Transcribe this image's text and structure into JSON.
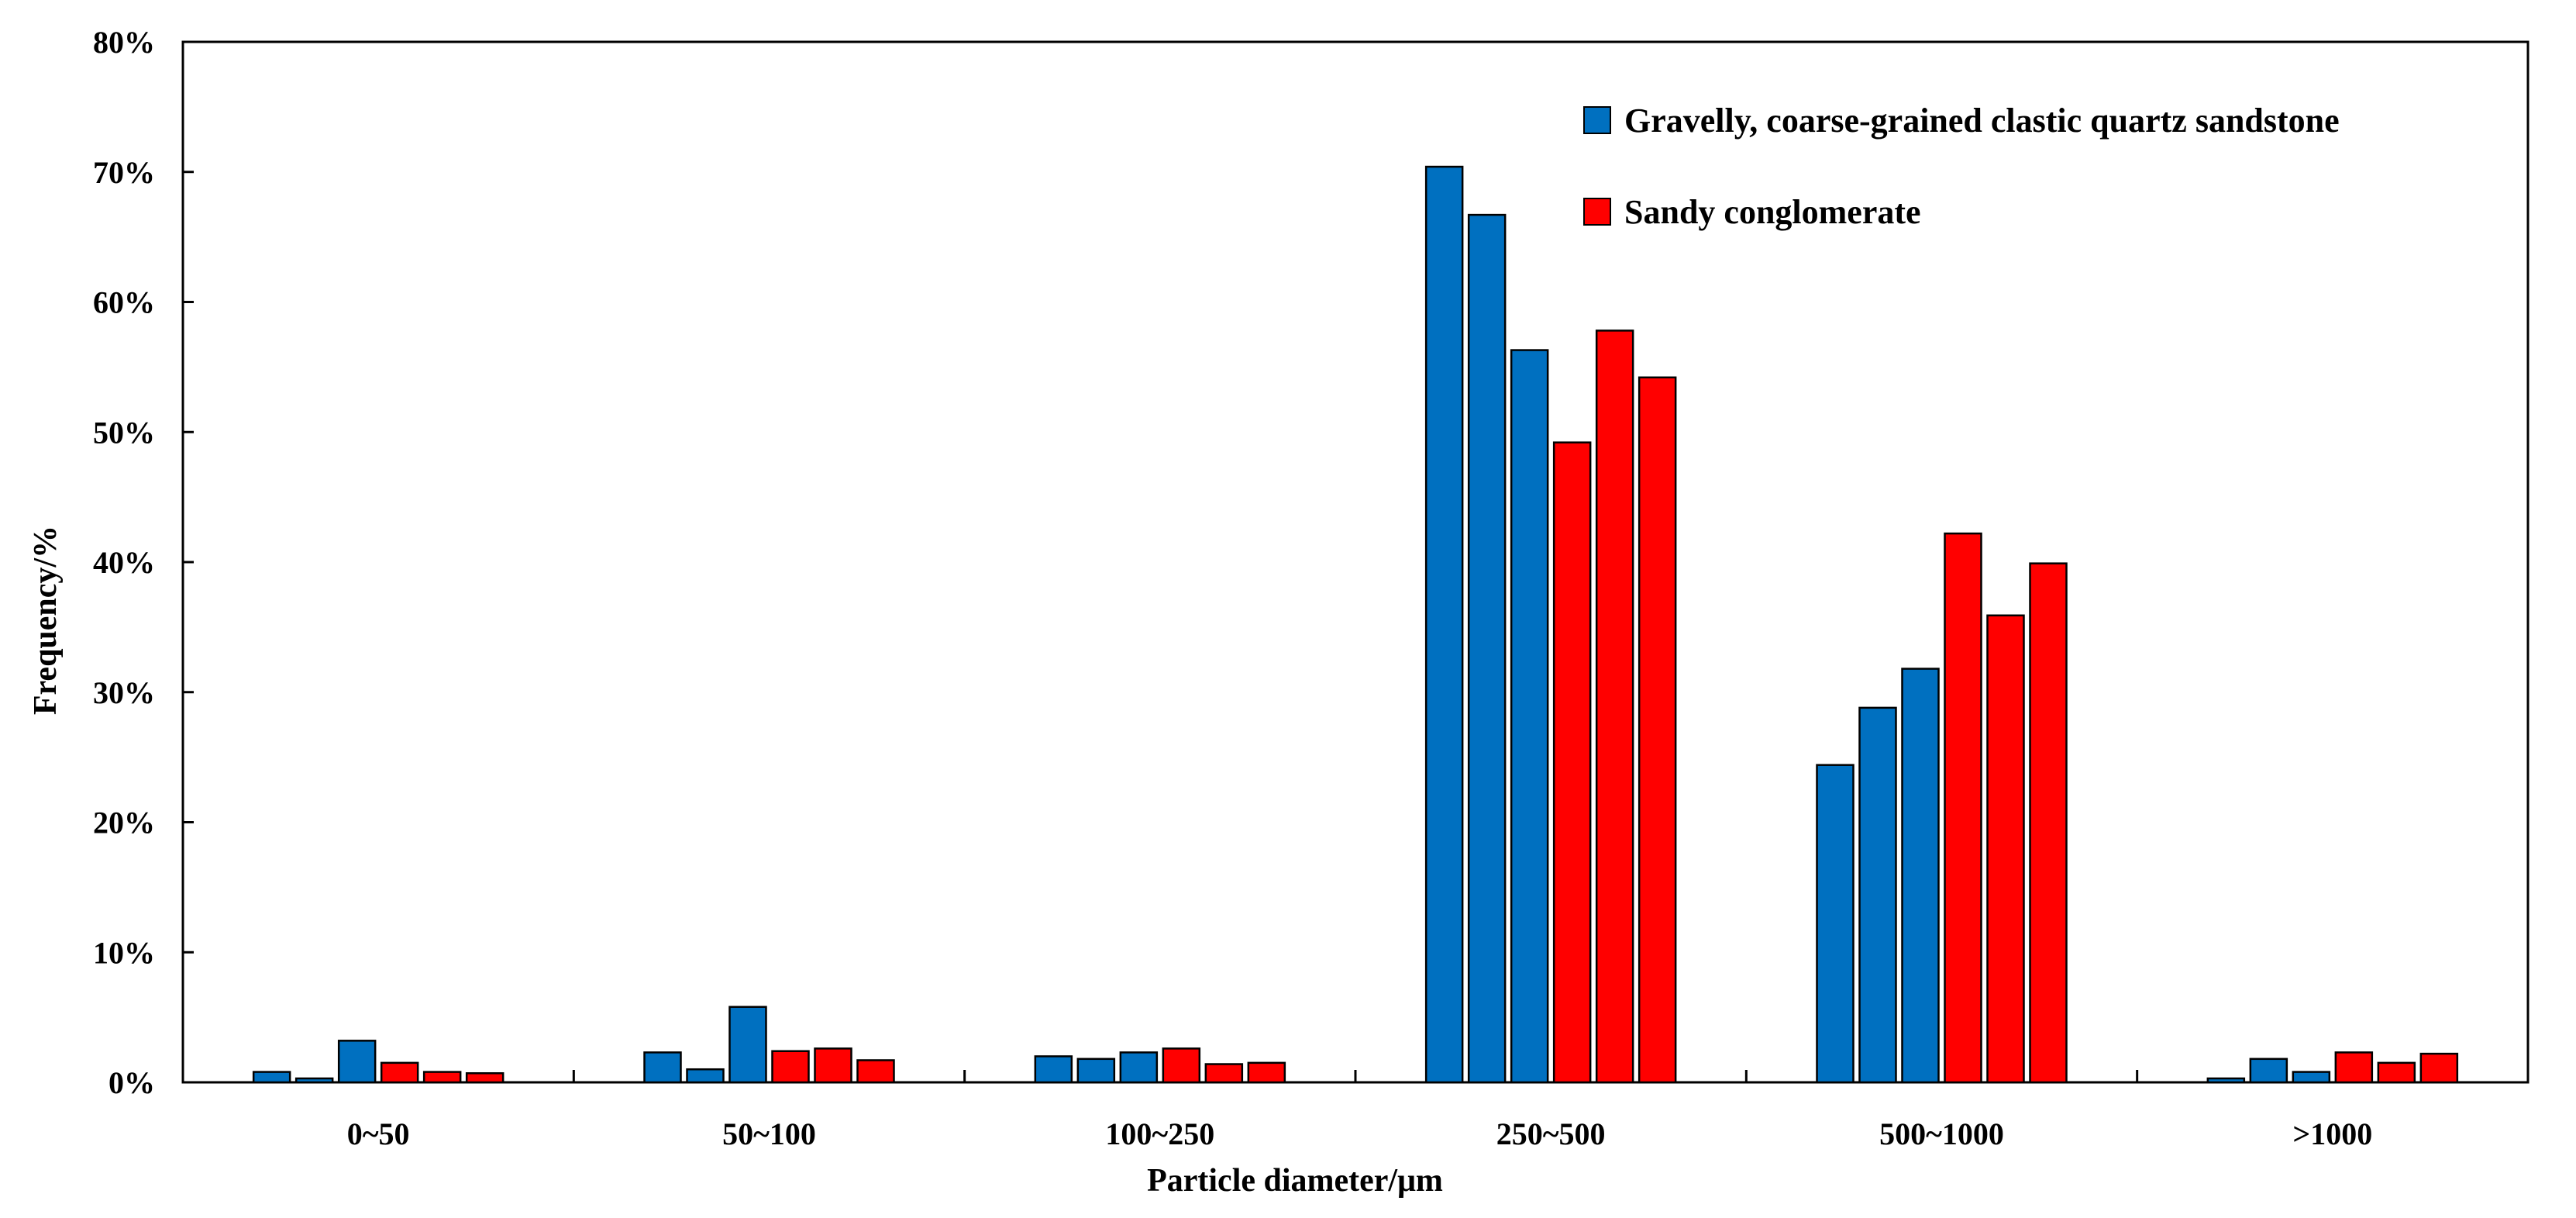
{
  "chart_data": {
    "type": "bar",
    "title": "",
    "xlabel": "Particle diameter/μm",
    "ylabel": "Frequency/%",
    "ylim": [
      0,
      80
    ],
    "y_ticks": [
      0,
      10,
      20,
      30,
      40,
      50,
      60,
      70,
      80
    ],
    "y_tick_labels": [
      "0%",
      "10%",
      "20%",
      "30%",
      "40%",
      "50%",
      "60%",
      "70%",
      "80%"
    ],
    "categories": [
      "0~50",
      "50~100",
      "100~250",
      "250~500",
      "500~1000",
      ">1000"
    ],
    "legend_position": "top-right",
    "series": [
      {
        "name": "Gravelly, coarse-grained clastic quartz sandstone",
        "color": "#0070c0",
        "sample_values": [
          [
            0.8,
            0.3,
            3.2
          ],
          [
            2.3,
            1.0,
            5.8
          ],
          [
            2.0,
            1.8,
            2.3
          ],
          [
            70.4,
            66.7,
            56.3
          ],
          [
            24.4,
            28.8,
            31.8
          ],
          [
            0.3,
            1.8,
            0.8
          ]
        ]
      },
      {
        "name": "Sandy conglomerate",
        "color": "#ff0000",
        "sample_values": [
          [
            1.5,
            0.8,
            0.7
          ],
          [
            2.4,
            2.6,
            1.7
          ],
          [
            2.6,
            1.4,
            1.5
          ],
          [
            49.2,
            57.8,
            54.2
          ],
          [
            42.2,
            35.9,
            39.9
          ],
          [
            2.3,
            1.5,
            2.2
          ]
        ]
      }
    ]
  }
}
